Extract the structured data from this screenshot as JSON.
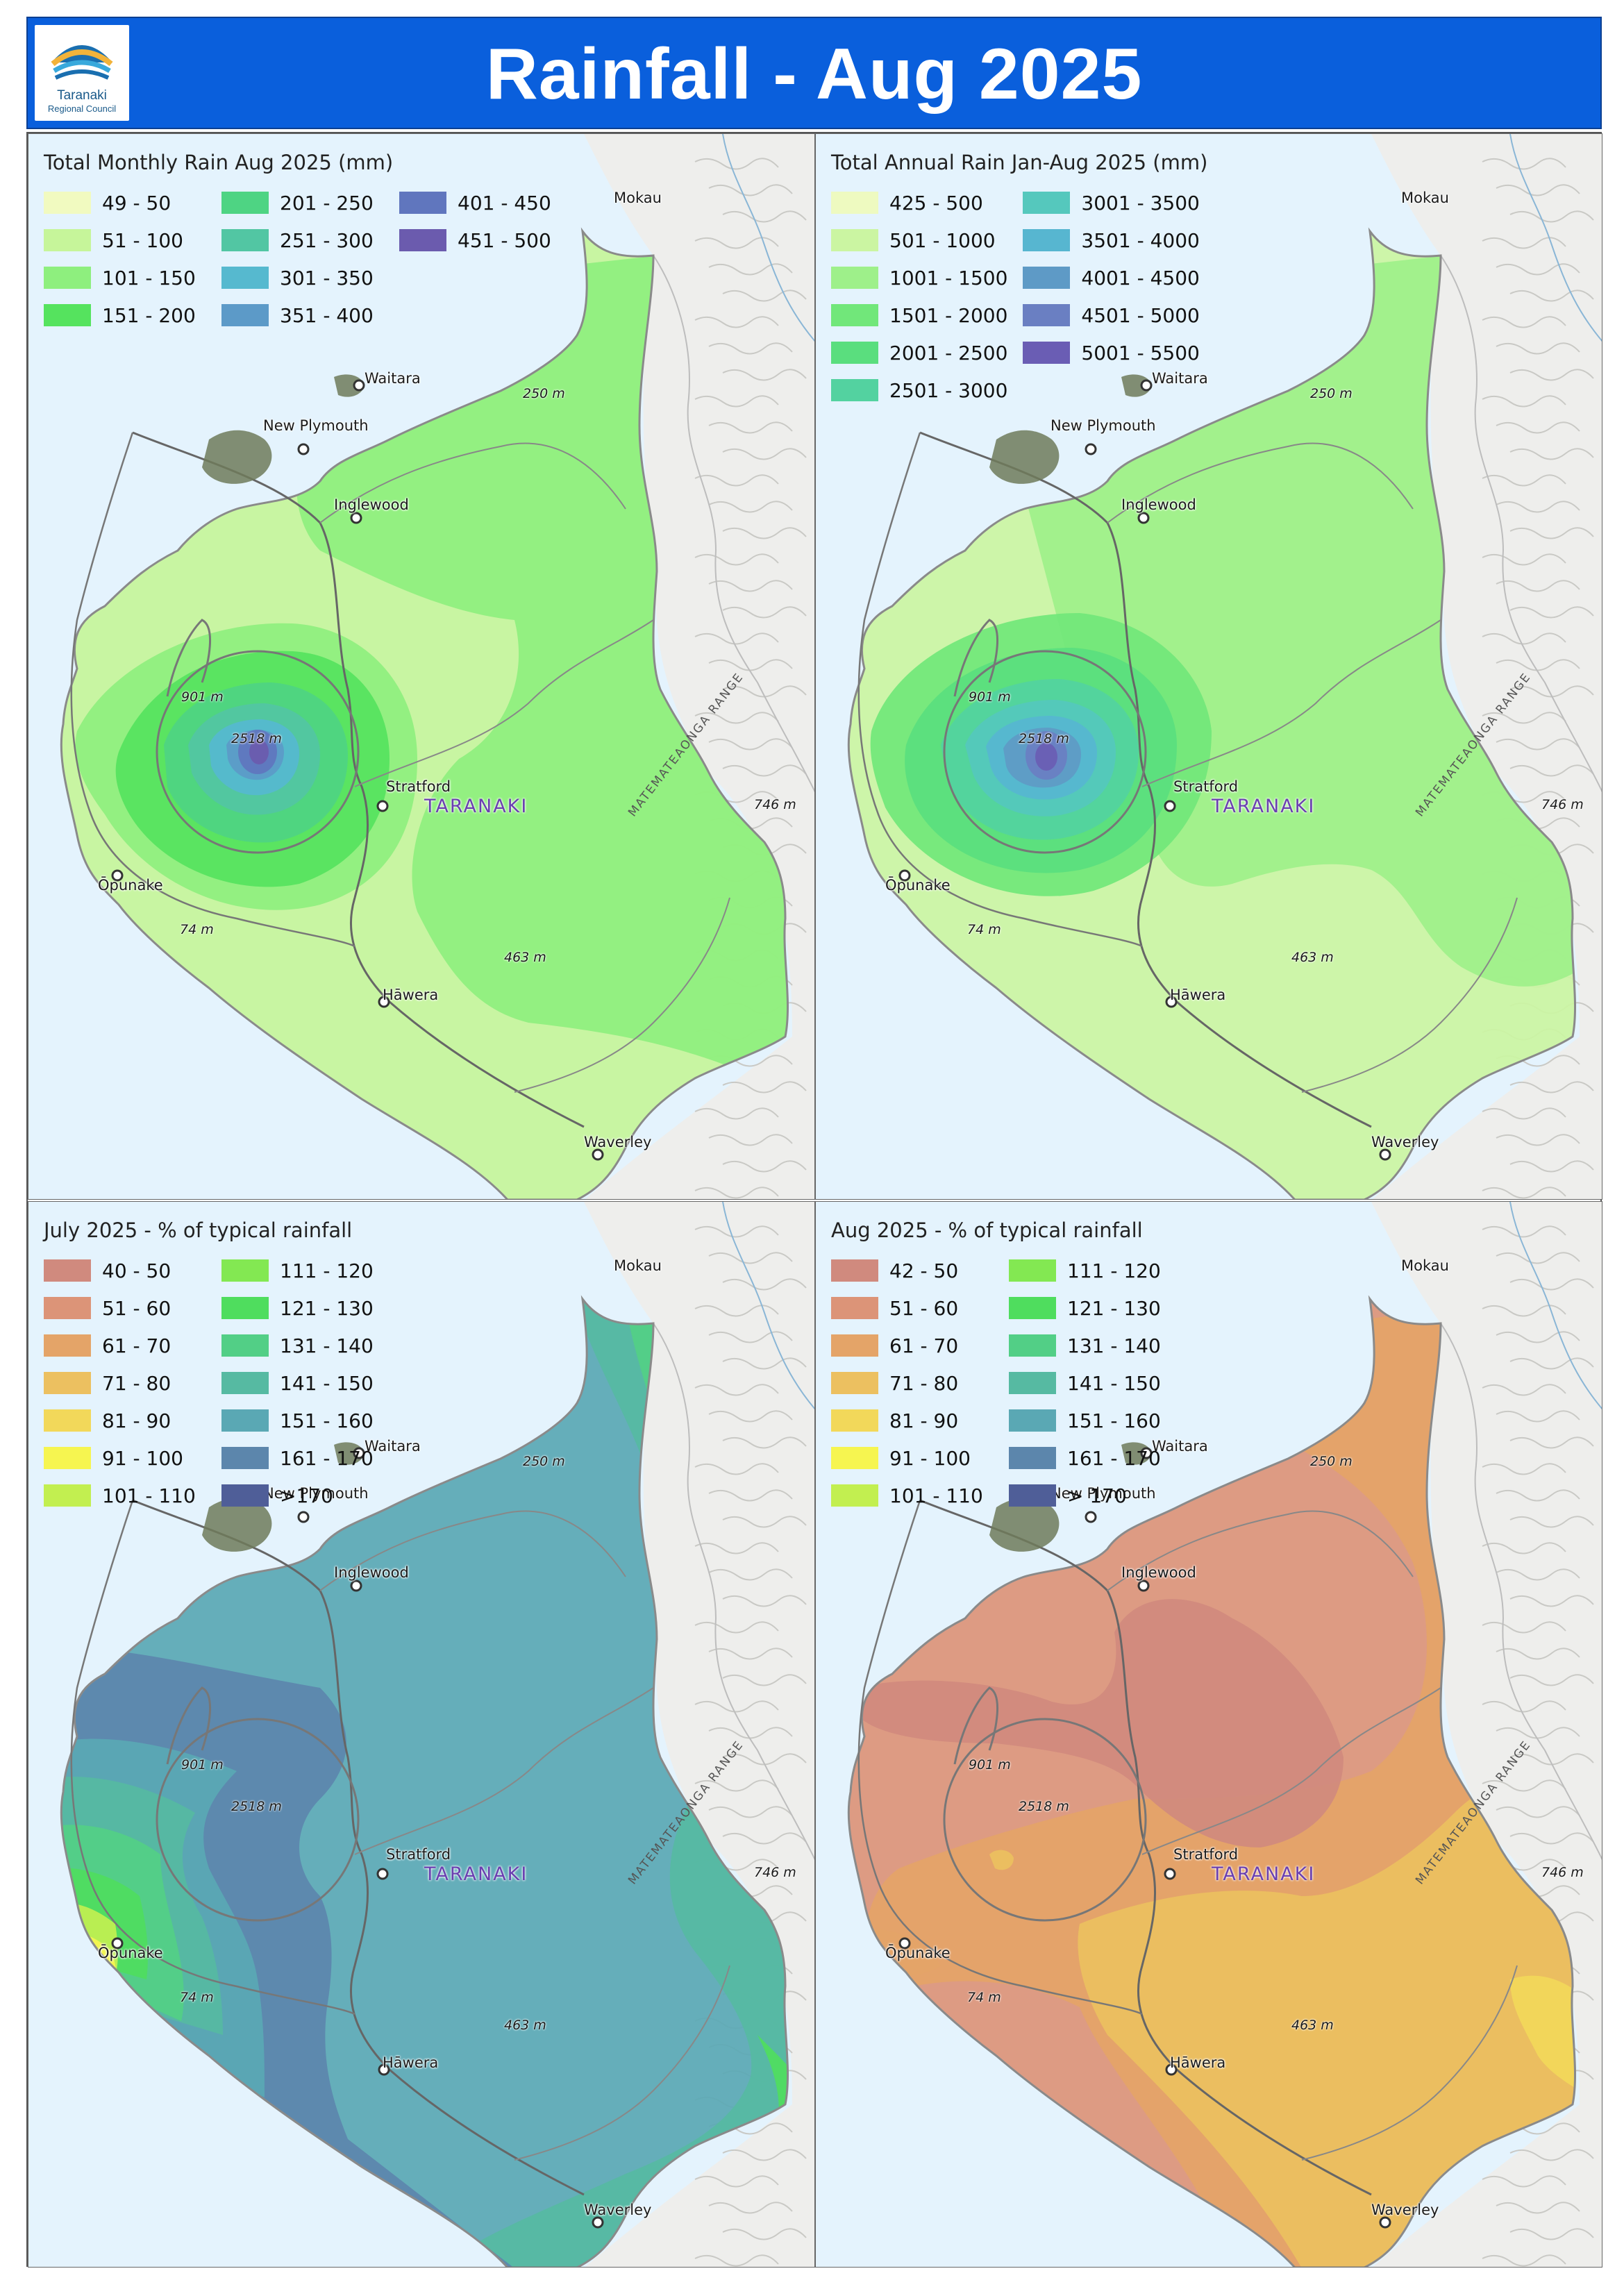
{
  "header": {
    "title": "Rainfall - Aug 2025",
    "logo_name": "Taranaki",
    "logo_sub": "Regional Council"
  },
  "map_labels": {
    "towns": [
      "Mokau",
      "Waitara",
      "New Plymouth",
      "Inglewood",
      "Stratford",
      "Ōpunake",
      "Hāwera",
      "Waverley"
    ],
    "elevations": [
      "250 m",
      "901 m",
      "2518 m",
      "746 m",
      "74 m",
      "463 m"
    ],
    "region": "TARANAKI",
    "range": "MATEMATEAONGA RANGE"
  },
  "panels": [
    {
      "legend_title": "Total Monthly Rain Aug 2025 (mm)",
      "legend": [
        [
          "49 - 50",
          "51 - 100",
          "101 - 150",
          "151 - 200"
        ],
        [
          "201 - 250",
          "251 - 300",
          "301 - 350",
          "351 - 400"
        ],
        [
          "401 - 450",
          "451 - 500"
        ]
      ],
      "colors": [
        [
          "#f1fac0",
          "#c6f59a",
          "#8eef7e",
          "#55e35e"
        ],
        [
          "#4ed483",
          "#52c6a3",
          "#56b9cf",
          "#5c9ac8"
        ],
        [
          "#6076be",
          "#6b5bae"
        ]
      ]
    },
    {
      "legend_title": "Total Annual Rain Jan-Aug 2025 (mm)",
      "legend": [
        [
          "425 - 500",
          "501 - 1000",
          "1001 - 1500",
          "1501 - 2000",
          "2001 - 2500",
          "2501 - 3000"
        ],
        [
          "3001 - 3500",
          "3501 - 4000",
          "4001 - 4500",
          "4501 - 5000",
          "5001 - 5500"
        ]
      ],
      "colors": [
        [
          "#eefac0",
          "#cbf5a2",
          "#9ef08a",
          "#71e77a",
          "#5ade7e",
          "#53d2a0"
        ],
        [
          "#55c8bd",
          "#57b6d0",
          "#5e9ac6",
          "#6a7fc2",
          "#6a5db4"
        ]
      ]
    },
    {
      "legend_title": "July 2025 - % of typical rainfall",
      "legend": [
        [
          "40 - 50",
          "51 - 60",
          "61 - 70",
          "71 - 80",
          "81 - 90",
          "91 - 100",
          "101 - 110"
        ],
        [
          "111 - 120",
          "121 - 130",
          "131 - 140",
          "141 - 150",
          "151 - 160",
          "161 - 170",
          ">170"
        ]
      ],
      "colors": [
        [
          "#d08a7e",
          "#dc9478",
          "#e4a468",
          "#ecc060",
          "#f2d85a",
          "#f6f550",
          "#c2ef50"
        ],
        [
          "#83e852",
          "#4fdd5e",
          "#52cf86",
          "#56baa2",
          "#5aa8b4",
          "#5c86ac",
          "#4f5e98"
        ]
      ]
    },
    {
      "legend_title": "Aug 2025 - % of typical rainfall",
      "legend": [
        [
          "42 - 50",
          "51 - 60",
          "61 - 70",
          "71 - 80",
          "81 - 90",
          "91 - 100",
          "101 - 110"
        ],
        [
          "111 - 120",
          "121 - 130",
          "131 - 140",
          "141 - 150",
          "151 - 160",
          "161 - 170",
          "> 170"
        ]
      ],
      "colors": [
        [
          "#d08a7e",
          "#dc9478",
          "#e4a468",
          "#ecc060",
          "#f2d85a",
          "#f6f550",
          "#c2ef50"
        ],
        [
          "#83e852",
          "#4fdd5e",
          "#52cf86",
          "#56baa2",
          "#5aa8b4",
          "#5c86ac",
          "#4f5e98"
        ]
      ]
    }
  ]
}
